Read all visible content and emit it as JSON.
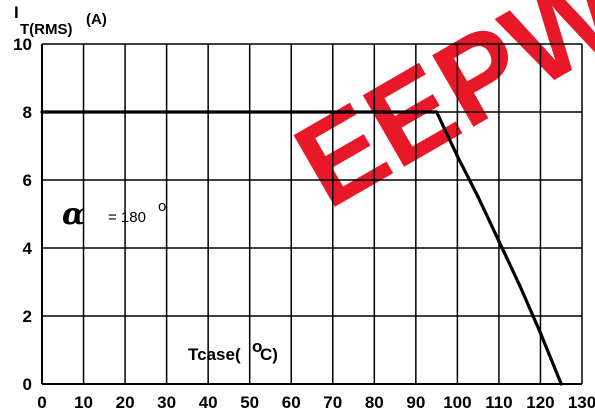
{
  "chart_data": {
    "type": "line",
    "ylabel": {
      "main": "I",
      "sub": "T(RMS)",
      "unit": "(A)"
    },
    "xlabel": {
      "main": "Tcase(",
      "sup": "o",
      "tail": "C)"
    },
    "annotation": {
      "symbol": "α",
      "text": "= 180",
      "sup": "o"
    },
    "watermark": "EEPW",
    "xlim": [
      0,
      130
    ],
    "ylim": [
      0,
      10
    ],
    "x_ticks": [
      0,
      10,
      20,
      30,
      40,
      50,
      60,
      70,
      80,
      90,
      100,
      110,
      120,
      130
    ],
    "y_ticks": [
      0,
      2,
      4,
      6,
      8,
      10
    ],
    "grid": true,
    "series": [
      {
        "x": [
          0,
          95,
          100,
          105,
          110,
          115,
          120,
          125
        ],
        "y": [
          8,
          8,
          6.7,
          5.5,
          4.2,
          2.9,
          1.5,
          0
        ]
      }
    ],
    "colors": {
      "line": "#000000",
      "grid": "#000000",
      "watermark": "#e60012"
    }
  }
}
